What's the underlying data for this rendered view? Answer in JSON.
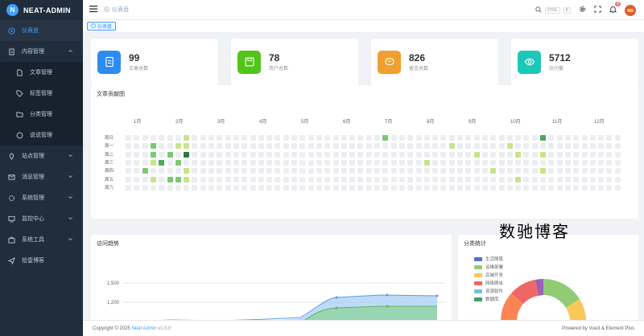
{
  "app": {
    "title": "NEAT-ADMIN",
    "logo_letter": "N"
  },
  "sidebar": {
    "items": [
      {
        "label": "仪表盘",
        "icon": "dashboard-icon",
        "active": true
      },
      {
        "label": "内容管理",
        "icon": "document-icon",
        "expanded": true
      },
      {
        "label": "文章管理",
        "icon": "file-icon",
        "sub": true
      },
      {
        "label": "标签管理",
        "icon": "tag-icon",
        "sub": true
      },
      {
        "label": "分类管理",
        "icon": "folder-icon",
        "sub": true
      },
      {
        "label": "说说管理",
        "icon": "chat-icon",
        "sub": true
      },
      {
        "label": "站点管理",
        "icon": "location-icon"
      },
      {
        "label": "消息管理",
        "icon": "message-icon"
      },
      {
        "label": "系统管理",
        "icon": "gear-icon"
      },
      {
        "label": "监控中心",
        "icon": "monitor-icon"
      },
      {
        "label": "系统工具",
        "icon": "briefcase-icon"
      },
      {
        "label": "拾壹博客",
        "icon": "send-icon"
      }
    ]
  },
  "header": {
    "breadcrumb": "仪表盘",
    "search_hint": "CTRL",
    "search_key": "K",
    "notifications": "8"
  },
  "tags": {
    "active": "仪表盘"
  },
  "stats": [
    {
      "value": "99",
      "label": "文章总数",
      "color": "#2d8cf0",
      "icon": "document-icon"
    },
    {
      "value": "78",
      "label": "用户总数",
      "color": "#52c41a",
      "icon": "save-icon"
    },
    {
      "value": "826",
      "label": "留言总数",
      "color": "#f0a030",
      "icon": "comment-icon"
    },
    {
      "value": "5712",
      "label": "访问量",
      "color": "#1cc7b8",
      "icon": "eye-icon"
    }
  ],
  "heatmap": {
    "title": "文章贡献图",
    "months": [
      "1月",
      "2月",
      "3月",
      "4月",
      "5月",
      "6月",
      "7月",
      "8月",
      "9月",
      "10月",
      "11月",
      "12月"
    ],
    "weekdays": [
      "周日",
      "周一",
      "周二",
      "周三",
      "周四",
      "周五",
      "周六"
    ],
    "legend_less": "较少",
    "legend_more": "较多",
    "colors": [
      "#ebedf0",
      "#c6e48b",
      "#7bc96f",
      "#49a85a",
      "#2b7a37"
    ],
    "active": [
      {
        "w": 3,
        "d": 1,
        "l": 2
      },
      {
        "w": 3,
        "d": 2,
        "l": 2
      },
      {
        "w": 3,
        "d": 3,
        "l": 1
      },
      {
        "w": 3,
        "d": 5,
        "l": 1
      },
      {
        "w": 4,
        "d": 3,
        "l": 3
      },
      {
        "w": 5,
        "d": 2,
        "l": 2
      },
      {
        "w": 5,
        "d": 5,
        "l": 2
      },
      {
        "w": 6,
        "d": 1,
        "l": 1
      },
      {
        "w": 6,
        "d": 3,
        "l": 2
      },
      {
        "w": 6,
        "d": 5,
        "l": 2
      },
      {
        "w": 7,
        "d": 0,
        "l": 1
      },
      {
        "w": 7,
        "d": 1,
        "l": 1
      },
      {
        "w": 7,
        "d": 2,
        "l": 4
      },
      {
        "w": 7,
        "d": 4,
        "l": 1
      },
      {
        "w": 7,
        "d": 5,
        "l": 1
      },
      {
        "w": 2,
        "d": 4,
        "l": 2
      },
      {
        "w": 31,
        "d": 0,
        "l": 2
      },
      {
        "w": 36,
        "d": 3,
        "l": 1
      },
      {
        "w": 39,
        "d": 1,
        "l": 1
      },
      {
        "w": 42,
        "d": 2,
        "l": 1
      },
      {
        "w": 44,
        "d": 4,
        "l": 1
      },
      {
        "w": 46,
        "d": 1,
        "l": 1
      },
      {
        "w": 47,
        "d": 2,
        "l": 1
      },
      {
        "w": 47,
        "d": 5,
        "l": 1
      },
      {
        "w": 50,
        "d": 2,
        "l": 1
      },
      {
        "w": 50,
        "d": 4,
        "l": 1
      },
      {
        "w": 50,
        "d": 0,
        "l": 3
      }
    ]
  },
  "visits": {
    "title": "访问趋势",
    "y_ticks": [
      "1,500",
      "1,200"
    ]
  },
  "category": {
    "title": "分类统计",
    "items": [
      {
        "label": "生活随笔",
        "color": "#5470c6"
      },
      {
        "label": "运维部署",
        "color": "#91cc75"
      },
      {
        "label": "后端开发",
        "color": "#fac858"
      },
      {
        "label": "网络爬虫",
        "color": "#ee6666"
      },
      {
        "label": "资源软件",
        "color": "#73c0de"
      },
      {
        "label": "数据库",
        "color": "#3ba272"
      }
    ]
  },
  "watermark": "数驰博客",
  "footer": {
    "copyright_prefix": "Copyright © 2025",
    "brand": "Neat Admin",
    "version": "v1.0.0",
    "powered": "Powered by Vue3 & Element Plus"
  }
}
